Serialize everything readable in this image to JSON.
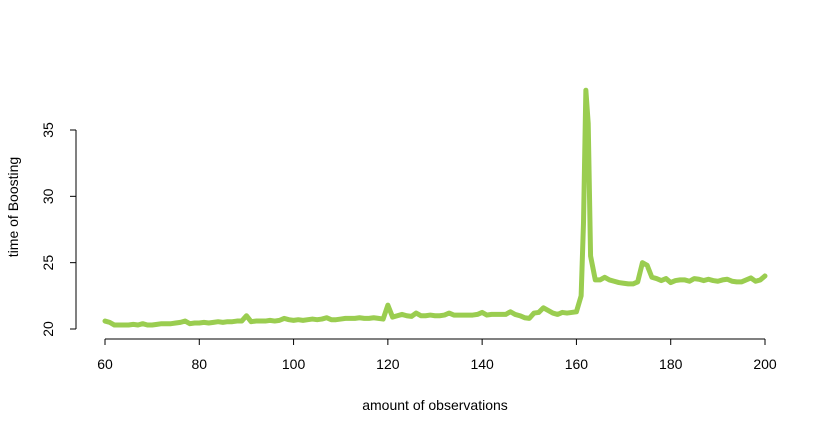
{
  "chart_data": {
    "type": "line",
    "title": "",
    "xlabel": "amount of observations",
    "ylabel": "time of Boosting",
    "xlim": [
      60,
      200
    ],
    "ylim": [
      20,
      38
    ],
    "xticks": [
      60,
      80,
      100,
      120,
      140,
      160,
      180,
      200
    ],
    "yticks": [
      20,
      25,
      30,
      35
    ],
    "grid": false,
    "legend": "none",
    "color": "#9ACD50",
    "series": [
      {
        "x": [
          60,
          61,
          62,
          63,
          64,
          65,
          66,
          67,
          68,
          69,
          70,
          71,
          72,
          73,
          74,
          75,
          76,
          77,
          78,
          79,
          80,
          81,
          82,
          83,
          84,
          85,
          86,
          87,
          88,
          89,
          90,
          91,
          92,
          93,
          94,
          95,
          96,
          97,
          98,
          99,
          100,
          101,
          102,
          103,
          104,
          105,
          106,
          107,
          108,
          109,
          110,
          111,
          112,
          113,
          114,
          115,
          116,
          117,
          118,
          119,
          120,
          121,
          122,
          123,
          124,
          125,
          126,
          127,
          128,
          129,
          130,
          131,
          132,
          133,
          134,
          135,
          136,
          137,
          138,
          139,
          140,
          141,
          142,
          143,
          144,
          145,
          146,
          147,
          148,
          149,
          150,
          151,
          152,
          153,
          154,
          155,
          156,
          157,
          158,
          159,
          160,
          161,
          161.5,
          162,
          162.5,
          163,
          164,
          165,
          166,
          167,
          168,
          169,
          170,
          171,
          172,
          173,
          174,
          175,
          176,
          177,
          178,
          179,
          180,
          181,
          182,
          183,
          184,
          185,
          186,
          187,
          188,
          189,
          190,
          191,
          192,
          193,
          194,
          195,
          196,
          197,
          198,
          199,
          200
        ],
        "y": [
          20.6,
          20.5,
          20.3,
          20.3,
          20.3,
          20.3,
          20.35,
          20.3,
          20.4,
          20.3,
          20.3,
          20.35,
          20.4,
          20.4,
          20.4,
          20.45,
          20.5,
          20.6,
          20.4,
          20.45,
          20.45,
          20.5,
          20.45,
          20.5,
          20.55,
          20.5,
          20.55,
          20.55,
          20.6,
          20.6,
          21.0,
          20.55,
          20.6,
          20.6,
          20.6,
          20.65,
          20.6,
          20.65,
          20.8,
          20.7,
          20.65,
          20.7,
          20.65,
          20.7,
          20.75,
          20.7,
          20.75,
          20.85,
          20.7,
          20.7,
          20.75,
          20.8,
          20.8,
          20.8,
          20.85,
          20.8,
          20.8,
          20.85,
          20.8,
          20.75,
          21.8,
          20.9,
          21.0,
          21.1,
          21.0,
          20.95,
          21.2,
          21.0,
          21.0,
          21.05,
          21.0,
          21.0,
          21.05,
          21.2,
          21.05,
          21.05,
          21.05,
          21.05,
          21.05,
          21.1,
          21.25,
          21.05,
          21.1,
          21.1,
          21.1,
          21.1,
          21.3,
          21.1,
          21.0,
          20.85,
          20.8,
          21.2,
          21.25,
          21.6,
          21.4,
          21.2,
          21.1,
          21.25,
          21.2,
          21.25,
          21.3,
          22.5,
          28.0,
          38.0,
          35.5,
          25.5,
          23.7,
          23.7,
          23.9,
          23.7,
          23.6,
          23.5,
          23.45,
          23.4,
          23.4,
          23.55,
          25.0,
          24.8,
          23.9,
          23.8,
          23.65,
          23.8,
          23.5,
          23.65,
          23.7,
          23.7,
          23.6,
          23.8,
          23.75,
          23.65,
          23.75,
          23.65,
          23.6,
          23.7,
          23.75,
          23.6,
          23.55,
          23.55,
          23.7,
          23.85,
          23.6,
          23.7,
          24.0
        ]
      }
    ]
  }
}
